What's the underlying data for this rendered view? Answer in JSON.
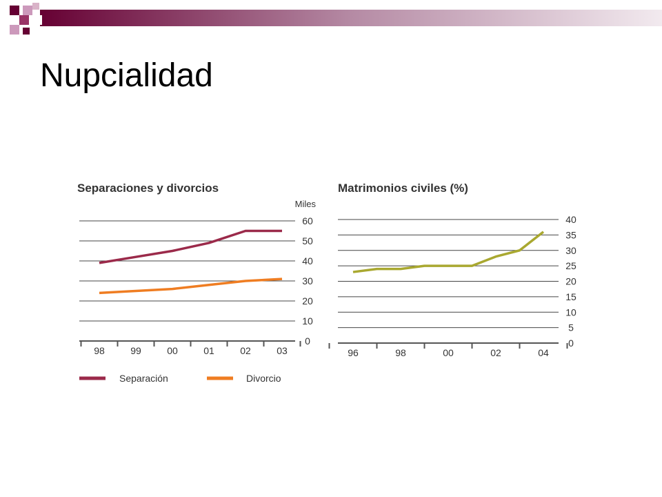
{
  "slide": {
    "title": "Nupcialidad",
    "accent_colors": {
      "dark": "#660033",
      "medium": "#993366",
      "light": "#cc99bb"
    }
  },
  "chart_data": [
    {
      "type": "line",
      "title": "Separaciones y divorcios",
      "ylabel": "Miles",
      "categories": [
        "98",
        "99",
        "00",
        "01",
        "02",
        "03"
      ],
      "yticks": [
        0,
        10,
        20,
        30,
        40,
        50,
        60
      ],
      "ylim": [
        0,
        60
      ],
      "grid": true,
      "legend_position": "bottom",
      "series": [
        {
          "name": "Separación",
          "color": "#9b2a4a",
          "values": [
            39,
            42,
            45,
            49,
            55,
            55
          ]
        },
        {
          "name": "Divorcio",
          "color": "#ef7d22",
          "values": [
            24,
            25,
            26,
            28,
            30,
            31
          ]
        }
      ]
    },
    {
      "type": "line",
      "title": "Matrimonios civiles (%)",
      "x": [
        1996,
        1997,
        1998,
        1999,
        2000,
        2001,
        2002,
        2003,
        2004
      ],
      "xticks": [
        "96",
        "98",
        "00",
        "02",
        "04"
      ],
      "yticks": [
        0,
        5,
        10,
        15,
        20,
        25,
        30,
        35,
        40
      ],
      "ylim": [
        0,
        40
      ],
      "grid": true,
      "series": [
        {
          "color": "#a9a830",
          "values": [
            23,
            24,
            24,
            25,
            25,
            25,
            28,
            30,
            36
          ]
        }
      ]
    }
  ]
}
